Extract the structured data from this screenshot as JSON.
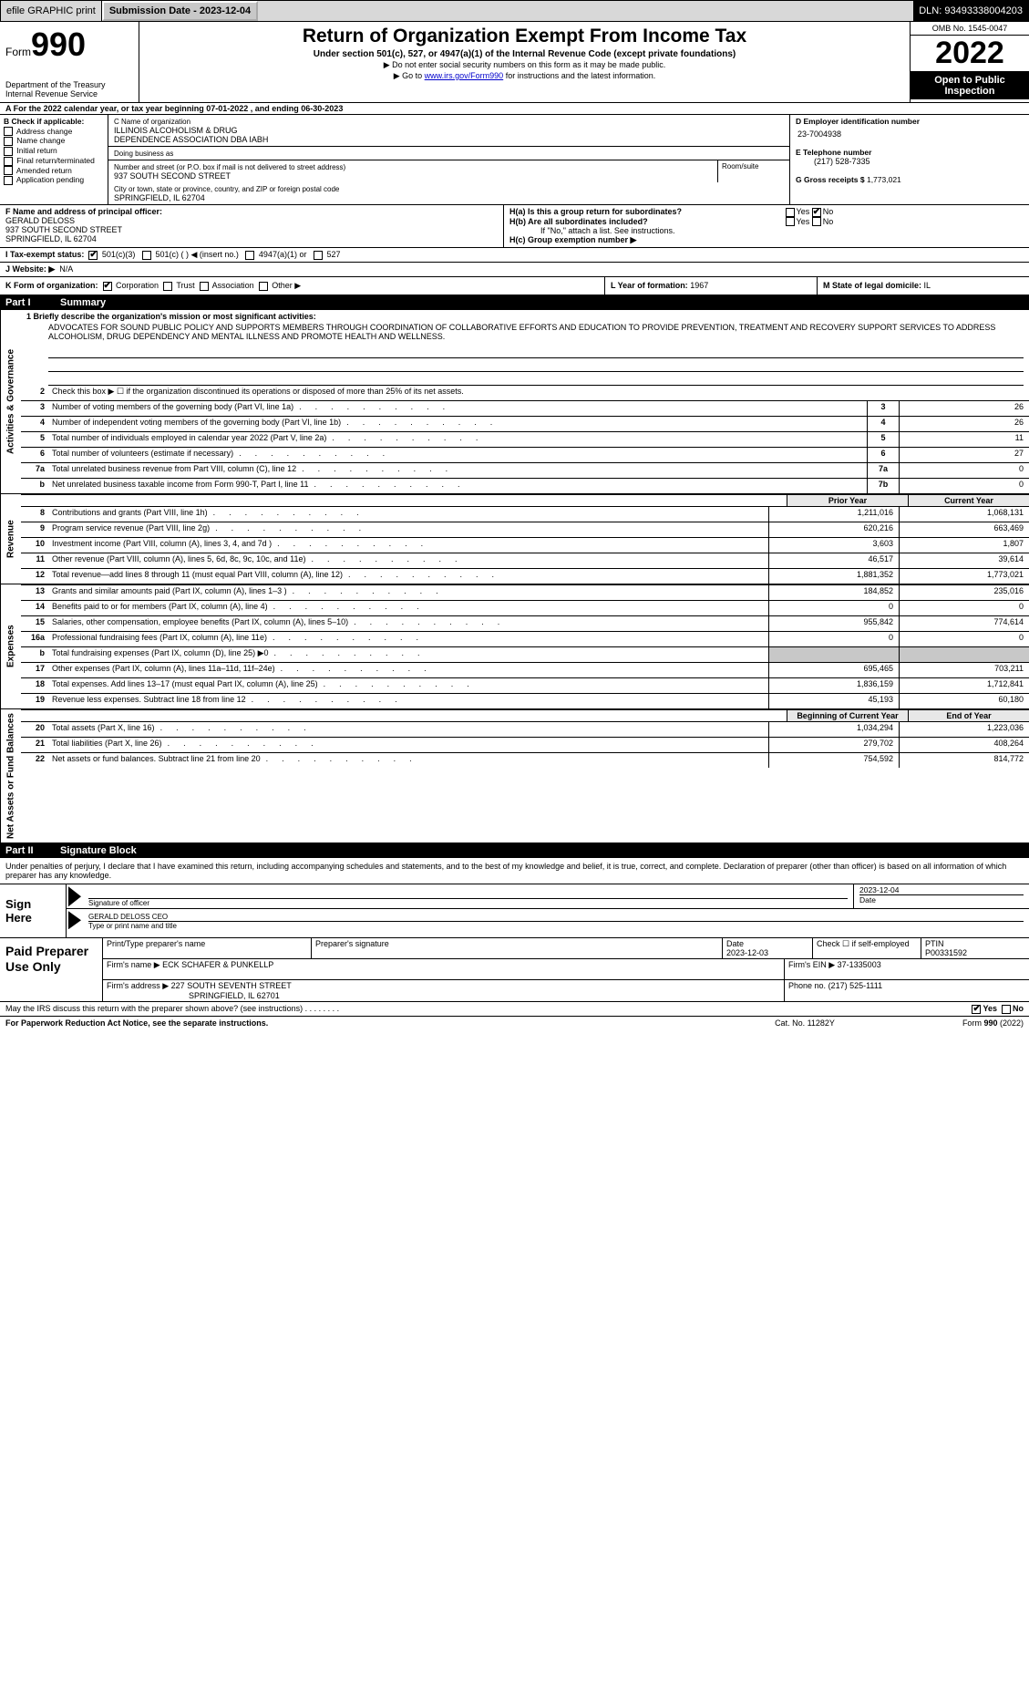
{
  "topbar": {
    "efile_label": "efile GRAPHIC print",
    "submission_label": "Submission Date - 2023-12-04",
    "dln_label": "DLN: 93493338004203"
  },
  "header": {
    "form_label": "Form",
    "form_number": "990",
    "title": "Return of Organization Exempt From Income Tax",
    "subtitle": "Under section 501(c), 527, or 4947(a)(1) of the Internal Revenue Code (except private foundations)",
    "note1": "▶ Do not enter social security numbers on this form as it may be made public.",
    "note2_pre": "▶ Go to ",
    "note2_link": "www.irs.gov/Form990",
    "note2_post": " for instructions and the latest information.",
    "dept": "Department of the Treasury\nInternal Revenue Service",
    "omb": "OMB No. 1545-0047",
    "year": "2022",
    "inspection": "Open to Public Inspection"
  },
  "line_a": "A For the 2022 calendar year, or tax year beginning 07-01-2022    , and ending 06-30-2023",
  "block_b": {
    "heading": "B Check if applicable:",
    "items": [
      "Address change",
      "Name change",
      "Initial return",
      "Final return/terminated",
      "Amended return",
      "Application pending"
    ]
  },
  "block_c": {
    "name_label": "C Name of organization",
    "name": "ILLINOIS ALCOHOLISM & DRUG\nDEPENDENCE ASSOCIATION DBA IABH",
    "dba_label": "Doing business as",
    "street_label": "Number and street (or P.O. box if mail is not delivered to street address)",
    "street": "937 SOUTH SECOND STREET",
    "room_label": "Room/suite",
    "city_label": "City or town, state or province, country, and ZIP or foreign postal code",
    "city": "SPRINGFIELD, IL  62704"
  },
  "block_d": {
    "ein_label": "D Employer identification number",
    "ein": "23-7004938",
    "phone_label": "E Telephone number",
    "phone": "(217) 528-7335",
    "gross_label": "G Gross receipts $",
    "gross": "1,773,021"
  },
  "block_f": {
    "label": "F  Name and address of principal officer:",
    "name": "GERALD DELOSS",
    "street": "937 SOUTH SECOND STREET",
    "city": "SPRINGFIELD, IL  62704"
  },
  "block_h": {
    "ha_label": "H(a)  Is this a group return for subordinates?",
    "hb_label": "H(b)  Are all subordinates included?",
    "hb_note": "If \"No,\" attach a list. See instructions.",
    "hc_label": "H(c)  Group exemption number ▶",
    "yes": "Yes",
    "no": "No"
  },
  "row_i": {
    "label": "I   Tax-exempt status:",
    "opt1": "501(c)(3)",
    "opt2": "501(c) (   ) ◀ (insert no.)",
    "opt3": "4947(a)(1) or",
    "opt4": "527"
  },
  "row_j": {
    "label": "J   Website: ▶",
    "value": "N/A"
  },
  "row_k": {
    "label": "K Form of organization:",
    "corp": "Corporation",
    "trust": "Trust",
    "assoc": "Association",
    "other": "Other ▶",
    "l_label": "L Year of formation:",
    "l_val": "1967",
    "m_label": "M State of legal domicile:",
    "m_val": "IL"
  },
  "part1": {
    "num": "Part I",
    "title": "Summary"
  },
  "briefly": {
    "label": "1  Briefly describe the organization's mission or most significant activities:",
    "text": "ADVOCATES FOR SOUND PUBLIC POLICY AND SUPPORTS MEMBERS THROUGH COORDINATION OF COLLABORATIVE EFFORTS AND EDUCATION TO PROVIDE PREVENTION, TREATMENT AND RECOVERY SUPPORT SERVICES TO ADDRESS ALCOHOLISM, DRUG DEPENDENCY AND MENTAL ILLNESS AND PROMOTE HEALTH AND WELLNESS."
  },
  "sidetabs": {
    "gov": "Activities & Governance",
    "rev": "Revenue",
    "exp": "Expenses",
    "net": "Net Assets or Fund Balances"
  },
  "gov_lines": [
    {
      "n": "2",
      "d": "Check this box ▶ ☐ if the organization discontinued its operations or disposed of more than 25% of its net assets."
    },
    {
      "n": "3",
      "d": "Number of voting members of the governing body (Part VI, line 1a)",
      "box": "3",
      "v": "26"
    },
    {
      "n": "4",
      "d": "Number of independent voting members of the governing body (Part VI, line 1b)",
      "box": "4",
      "v": "26"
    },
    {
      "n": "5",
      "d": "Total number of individuals employed in calendar year 2022 (Part V, line 2a)",
      "box": "5",
      "v": "11"
    },
    {
      "n": "6",
      "d": "Total number of volunteers (estimate if necessary)",
      "box": "6",
      "v": "27"
    },
    {
      "n": "7a",
      "d": "Total unrelated business revenue from Part VIII, column (C), line 12",
      "box": "7a",
      "v": "0"
    },
    {
      "n": "b",
      "d": "Net unrelated business taxable income from Form 990-T, Part I, line 11",
      "box": "7b",
      "v": "0"
    }
  ],
  "col_headers": {
    "prior": "Prior Year",
    "current": "Current Year"
  },
  "rev_lines": [
    {
      "n": "8",
      "d": "Contributions and grants (Part VIII, line 1h)",
      "p": "1,211,016",
      "c": "1,068,131"
    },
    {
      "n": "9",
      "d": "Program service revenue (Part VIII, line 2g)",
      "p": "620,216",
      "c": "663,469"
    },
    {
      "n": "10",
      "d": "Investment income (Part VIII, column (A), lines 3, 4, and 7d )",
      "p": "3,603",
      "c": "1,807"
    },
    {
      "n": "11",
      "d": "Other revenue (Part VIII, column (A), lines 5, 6d, 8c, 9c, 10c, and 11e)",
      "p": "46,517",
      "c": "39,614"
    },
    {
      "n": "12",
      "d": "Total revenue—add lines 8 through 11 (must equal Part VIII, column (A), line 12)",
      "p": "1,881,352",
      "c": "1,773,021"
    }
  ],
  "exp_lines": [
    {
      "n": "13",
      "d": "Grants and similar amounts paid (Part IX, column (A), lines 1–3 )",
      "p": "184,852",
      "c": "235,016"
    },
    {
      "n": "14",
      "d": "Benefits paid to or for members (Part IX, column (A), line 4)",
      "p": "0",
      "c": "0"
    },
    {
      "n": "15",
      "d": "Salaries, other compensation, employee benefits (Part IX, column (A), lines 5–10)",
      "p": "955,842",
      "c": "774,614"
    },
    {
      "n": "16a",
      "d": "Professional fundraising fees (Part IX, column (A), line 11e)",
      "p": "0",
      "c": "0"
    },
    {
      "n": "b",
      "d": "Total fundraising expenses (Part IX, column (D), line 25) ▶0",
      "shade": true
    },
    {
      "n": "17",
      "d": "Other expenses (Part IX, column (A), lines 11a–11d, 11f–24e)",
      "p": "695,465",
      "c": "703,211"
    },
    {
      "n": "18",
      "d": "Total expenses. Add lines 13–17 (must equal Part IX, column (A), line 25)",
      "p": "1,836,159",
      "c": "1,712,841"
    },
    {
      "n": "19",
      "d": "Revenue less expenses. Subtract line 18 from line 12",
      "p": "45,193",
      "c": "60,180"
    }
  ],
  "net_headers": {
    "prior": "Beginning of Current Year",
    "current": "End of Year"
  },
  "net_lines": [
    {
      "n": "20",
      "d": "Total assets (Part X, line 16)",
      "p": "1,034,294",
      "c": "1,223,036"
    },
    {
      "n": "21",
      "d": "Total liabilities (Part X, line 26)",
      "p": "279,702",
      "c": "408,264"
    },
    {
      "n": "22",
      "d": "Net assets or fund balances. Subtract line 21 from line 20",
      "p": "754,592",
      "c": "814,772"
    }
  ],
  "part2": {
    "num": "Part II",
    "title": "Signature Block"
  },
  "sig_text": "Under penalties of perjury, I declare that I have examined this return, including accompanying schedules and statements, and to the best of my knowledge and belief, it is true, correct, and complete. Declaration of preparer (other than officer) is based on all information of which preparer has any knowledge.",
  "sign": {
    "here": "Sign Here",
    "sig_label": "Signature of officer",
    "date_label": "Date",
    "date_val": "2023-12-04",
    "name_label": "Type or print name and title",
    "name_val": "GERALD DELOSS CEO"
  },
  "paid": {
    "title": "Paid Preparer Use Only",
    "print_label": "Print/Type preparer's name",
    "sig_label": "Preparer's signature",
    "date_label": "Date",
    "date_val": "2023-12-03",
    "check_label": "Check ☐ if self-employed",
    "ptin_label": "PTIN",
    "ptin_val": "P00331592",
    "firm_name_label": "Firm's name    ▶",
    "firm_name": "ECK SCHAFER & PUNKELLP",
    "firm_ein_label": "Firm's EIN ▶",
    "firm_ein": "37-1335003",
    "firm_addr_label": "Firm's address ▶",
    "firm_addr1": "227 SOUTH SEVENTH STREET",
    "firm_addr2": "SPRINGFIELD, IL  62701",
    "phone_label": "Phone no.",
    "phone": "(217) 525-1111"
  },
  "footer": {
    "discuss": "May the IRS discuss this return with the preparer shown above? (see instructions)",
    "yes": "Yes",
    "no": "No",
    "pra": "For Paperwork Reduction Act Notice, see the separate instructions.",
    "cat": "Cat. No. 11282Y",
    "form": "Form 990 (2022)"
  }
}
